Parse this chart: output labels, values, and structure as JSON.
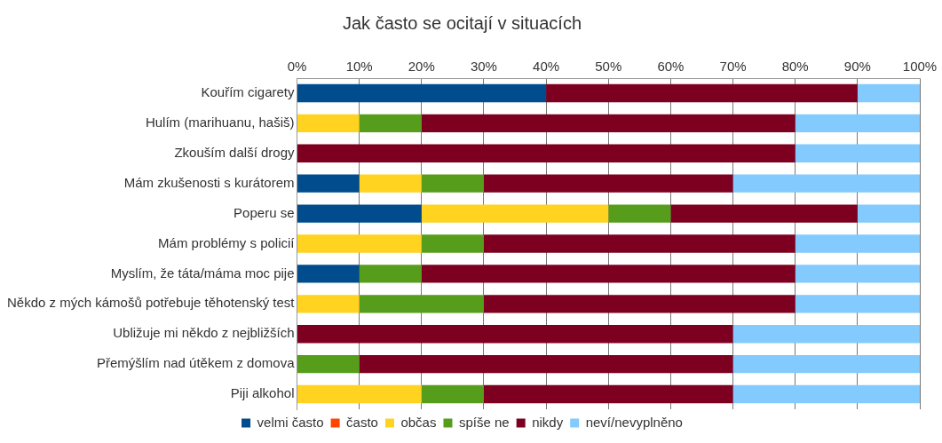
{
  "chart_data": {
    "type": "bar",
    "orientation": "horizontal",
    "stacked": true,
    "title": "Jak často se ocitají v situacích",
    "categories": [
      "Kouřím cigarety",
      "Hulím (marihuanu, hašiš)",
      "Zkouším další drogy",
      "Mám zkušenosti s kurátorem",
      "Poperu se",
      "Mám problémy s policií",
      "Myslím, že táta/máma moc pije",
      "Někdo z mých kámošů potřebuje těhotenský test",
      "Ubližuje mi někdo z nejbližších",
      "Přemýšlím nad útěkem z domova",
      "Piji alkohol"
    ],
    "series": [
      {
        "name": "velmi často",
        "color": "#004c8c",
        "values": [
          40,
          0,
          0,
          10,
          20,
          0,
          10,
          0,
          0,
          0,
          0
        ]
      },
      {
        "name": "často",
        "color": "#ff4500",
        "values": [
          0,
          0,
          0,
          0,
          0,
          0,
          0,
          0,
          0,
          0,
          0
        ]
      },
      {
        "name": "občas",
        "color": "#ffd320",
        "values": [
          0,
          10,
          0,
          10,
          30,
          20,
          0,
          10,
          0,
          0,
          20
        ]
      },
      {
        "name": "spíše ne",
        "color": "#579d1c",
        "values": [
          0,
          10,
          0,
          10,
          10,
          10,
          10,
          20,
          0,
          10,
          10
        ]
      },
      {
        "name": "nikdy",
        "color": "#7e0021",
        "values": [
          50,
          60,
          80,
          40,
          30,
          50,
          60,
          50,
          70,
          60,
          40
        ]
      },
      {
        "name": "neví/nevyplněno",
        "color": "#83caff",
        "values": [
          10,
          20,
          20,
          30,
          10,
          20,
          20,
          20,
          30,
          30,
          30
        ]
      }
    ],
    "xlim": [
      0,
      100
    ],
    "xticks": [
      {
        "value": 0,
        "label": "0%"
      },
      {
        "value": 10,
        "label": "10%"
      },
      {
        "value": 20,
        "label": "20%"
      },
      {
        "value": 30,
        "label": "30%"
      },
      {
        "value": 40,
        "label": "40%"
      },
      {
        "value": 50,
        "label": "50%"
      },
      {
        "value": 60,
        "label": "60%"
      },
      {
        "value": 70,
        "label": "70%"
      },
      {
        "value": 80,
        "label": "80%"
      },
      {
        "value": 90,
        "label": "90%"
      },
      {
        "value": 100,
        "label": "100%"
      }
    ],
    "grid": "x",
    "legend": "bottom"
  }
}
